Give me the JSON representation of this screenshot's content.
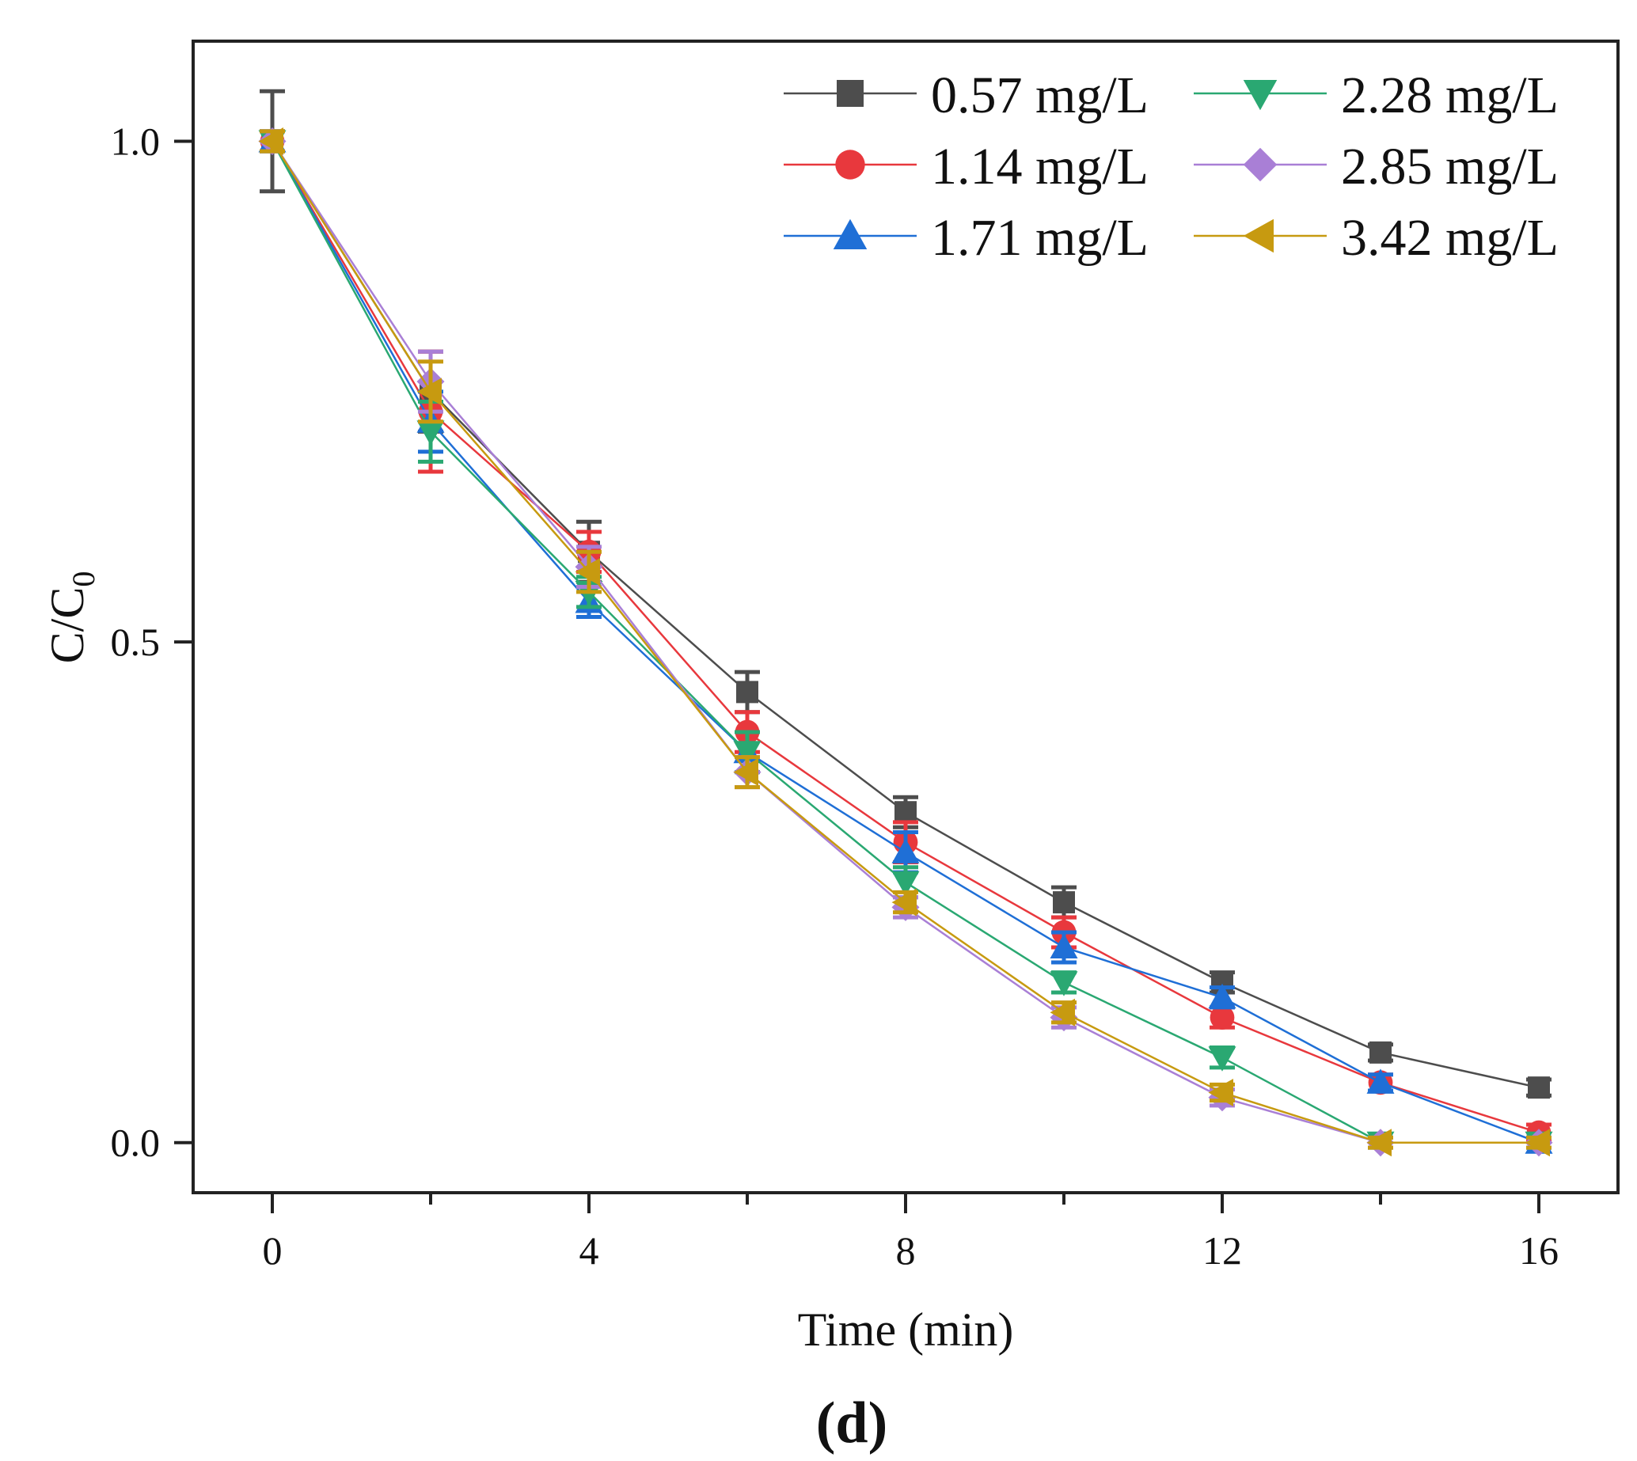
{
  "chart_data": {
    "type": "line",
    "title": "",
    "xlabel": "Time (min)",
    "ylabel_main": "C/C",
    "ylabel_sub": "0",
    "panel_label": "(d)",
    "xlim": [
      -1,
      17
    ],
    "ylim": [
      -0.05,
      1.1
    ],
    "x_ticks": [
      0,
      4,
      8,
      12,
      16
    ],
    "y_ticks": [
      0.0,
      0.5,
      1.0
    ],
    "y_tick_labels": [
      "0.0",
      "0.5",
      "1.0"
    ],
    "grid": false,
    "legend_position": "top-right",
    "x": [
      0,
      2,
      4,
      6,
      8,
      10,
      12,
      14,
      16
    ],
    "series": [
      {
        "name": "0.57 mg/L",
        "color": "#4d4d4d",
        "marker": "square",
        "values": [
          1.0,
          0.75,
          0.59,
          0.45,
          0.33,
          0.24,
          0.16,
          0.09,
          0.055
        ],
        "errors": [
          0.05,
          0.04,
          0.03,
          0.02,
          0.015,
          0.015,
          0.01,
          0.008,
          0.008
        ]
      },
      {
        "name": "1.14 mg/L",
        "color": "#e8383d",
        "marker": "circle",
        "values": [
          1.0,
          0.73,
          0.59,
          0.41,
          0.3,
          0.21,
          0.125,
          0.06,
          0.01
        ],
        "errors": [
          0.01,
          0.06,
          0.02,
          0.02,
          0.02,
          0.015,
          0.01,
          0.008,
          0.008
        ]
      },
      {
        "name": "1.71 mg/L",
        "color": "#1f6fd6",
        "marker": "triangle-up",
        "values": [
          1.0,
          0.72,
          0.54,
          0.39,
          0.29,
          0.195,
          0.145,
          0.06,
          0.0
        ],
        "errors": [
          0.01,
          0.03,
          0.015,
          0.02,
          0.02,
          0.015,
          0.01,
          0.008,
          0.005
        ]
      },
      {
        "name": "2.28 mg/L",
        "color": "#2aa872",
        "marker": "triangle-down",
        "values": [
          1.0,
          0.71,
          0.55,
          0.39,
          0.26,
          0.16,
          0.085,
          0.0,
          0.0
        ],
        "errors": [
          0.01,
          0.03,
          0.015,
          0.02,
          0.015,
          0.01,
          0.01,
          0.005,
          0.005
        ]
      },
      {
        "name": "2.85 mg/L",
        "color": "#a97fd6",
        "marker": "diamond",
        "values": [
          1.0,
          0.76,
          0.575,
          0.37,
          0.235,
          0.125,
          0.045,
          0.0,
          0.0
        ],
        "errors": [
          0.01,
          0.03,
          0.02,
          0.015,
          0.01,
          0.01,
          0.008,
          0.005,
          0.005
        ]
      },
      {
        "name": "3.42 mg/L",
        "color": "#c79a10",
        "marker": "triangle-left",
        "values": [
          1.0,
          0.75,
          0.57,
          0.37,
          0.24,
          0.13,
          0.05,
          0.0,
          0.0
        ],
        "errors": [
          0.01,
          0.03,
          0.02,
          0.015,
          0.01,
          0.01,
          0.008,
          0.005,
          0.005
        ]
      }
    ]
  }
}
